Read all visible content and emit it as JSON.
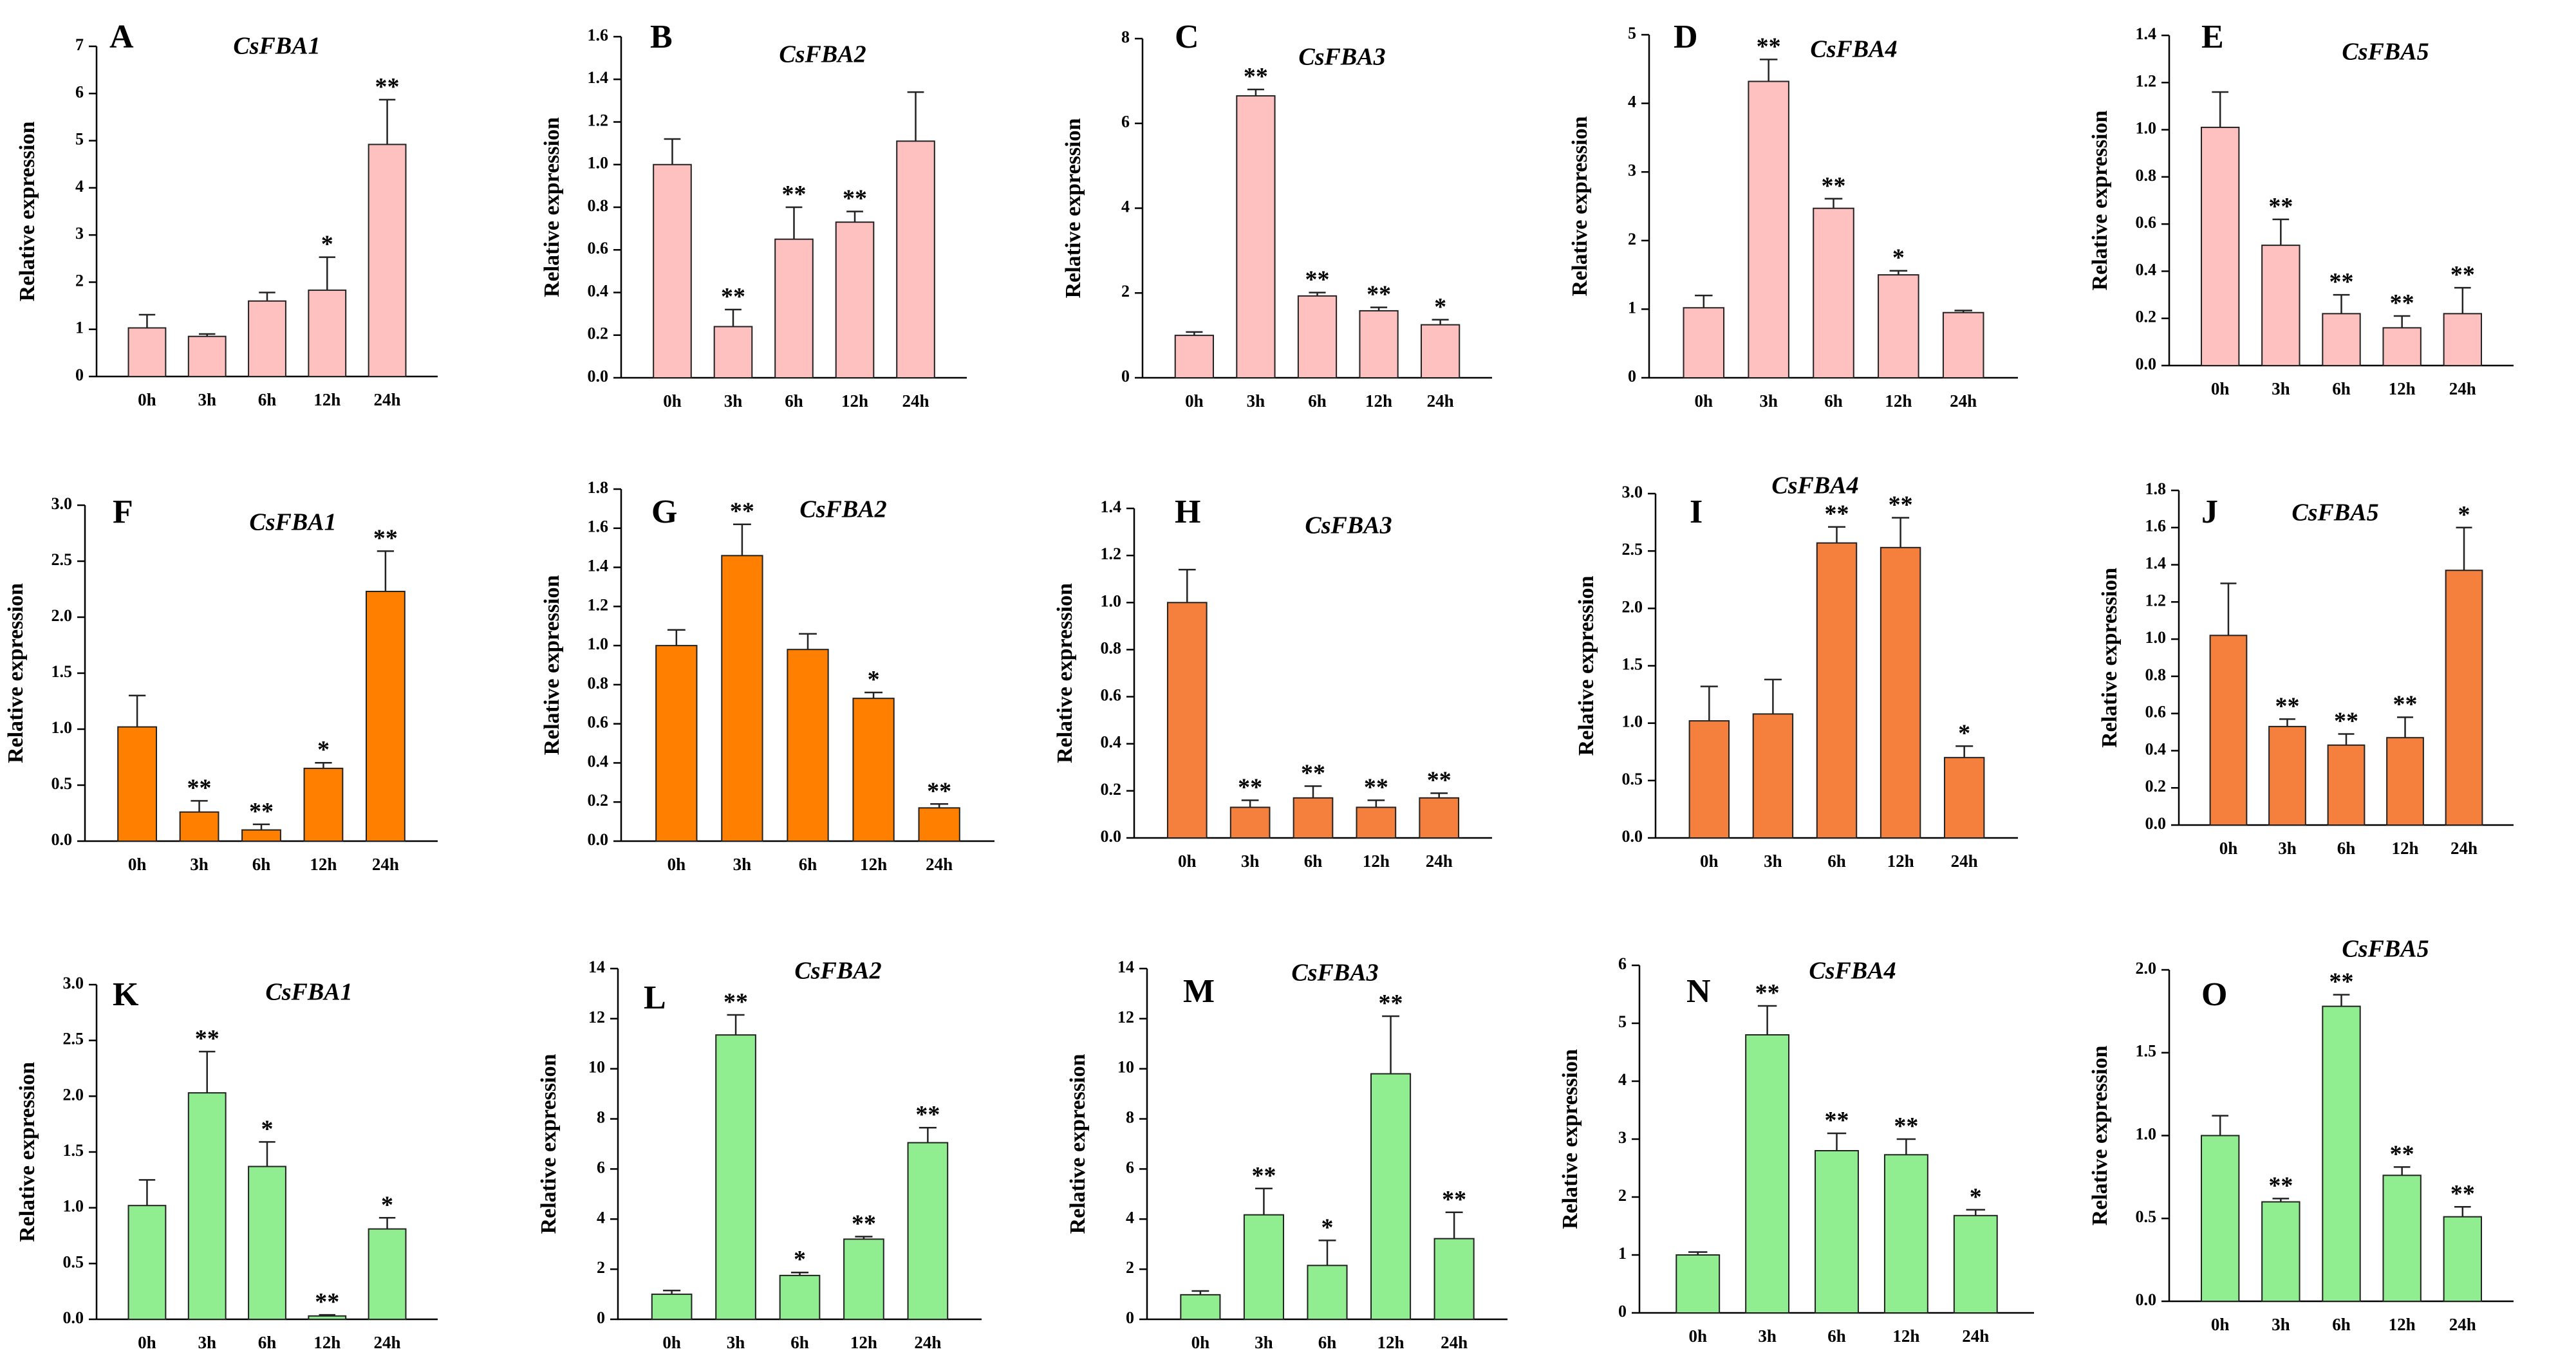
{
  "figure": {
    "ylabel": "Relative expression"
  },
  "chart_data": [
    {
      "panel": "A",
      "title": "CsFBA1",
      "type": "bar",
      "color": "#FFC0C0",
      "categories": [
        "0h",
        "3h",
        "6h",
        "12h",
        "24h"
      ],
      "values": [
        1.03,
        0.85,
        1.6,
        1.83,
        4.92
      ],
      "errors": [
        0.28,
        0.05,
        0.18,
        0.7,
        0.95
      ],
      "significance": [
        "",
        "",
        "",
        "*",
        "**"
      ],
      "ylim": [
        0,
        7
      ],
      "yticks": [
        "0",
        "1",
        "2",
        "3",
        "4",
        "5",
        "6",
        "7"
      ],
      "ylabel": "Relative expression"
    },
    {
      "panel": "B",
      "title": "CsFBA2",
      "type": "bar",
      "color": "#FFC0C0",
      "categories": [
        "0h",
        "3h",
        "6h",
        "12h",
        "24h"
      ],
      "values": [
        1.0,
        0.24,
        0.65,
        0.73,
        1.11
      ],
      "errors": [
        0.12,
        0.08,
        0.15,
        0.05,
        0.23
      ],
      "significance": [
        "",
        "**",
        "**",
        "**",
        ""
      ],
      "ylim": [
        0,
        1.6
      ],
      "yticks": [
        "0.0",
        "0.2",
        "0.4",
        "0.6",
        "0.8",
        "1.0",
        "1.2",
        "1.4",
        "1.6"
      ],
      "ylabel": "Relative expression"
    },
    {
      "panel": "C",
      "title": "CsFBA3",
      "type": "bar",
      "color": "#FFC0C0",
      "categories": [
        "0h",
        "3h",
        "6h",
        "12h",
        "24h"
      ],
      "values": [
        1.0,
        6.65,
        1.93,
        1.58,
        1.25
      ],
      "errors": [
        0.08,
        0.15,
        0.08,
        0.08,
        0.12
      ],
      "significance": [
        "",
        "**",
        "**",
        "**",
        "*"
      ],
      "ylim": [
        0,
        8
      ],
      "yticks": [
        "0",
        "2",
        "4",
        "6",
        "8"
      ],
      "ylabel": "Relative expression"
    },
    {
      "panel": "D",
      "title": "CsFBA4",
      "type": "bar",
      "color": "#FFC0C0",
      "categories": [
        "0h",
        "3h",
        "6h",
        "12h",
        "24h"
      ],
      "values": [
        1.02,
        4.32,
        2.47,
        1.5,
        0.95
      ],
      "errors": [
        0.18,
        0.32,
        0.14,
        0.06,
        0.03
      ],
      "significance": [
        "",
        "**",
        "**",
        "*",
        ""
      ],
      "ylim": [
        0,
        5
      ],
      "yticks": [
        "0",
        "1",
        "2",
        "3",
        "4",
        "5"
      ],
      "ylabel": "Relative expression"
    },
    {
      "panel": "E",
      "title": "CsFBA5",
      "type": "bar",
      "color": "#FFC0C0",
      "categories": [
        "0h",
        "3h",
        "6h",
        "12h",
        "24h"
      ],
      "values": [
        1.01,
        0.51,
        0.22,
        0.16,
        0.22
      ],
      "errors": [
        0.15,
        0.11,
        0.08,
        0.05,
        0.11
      ],
      "significance": [
        "",
        "**",
        "**",
        "**",
        "**"
      ],
      "ylim": [
        0,
        1.4
      ],
      "yticks": [
        "0.0",
        "0.2",
        "0.4",
        "0.6",
        "0.8",
        "1.0",
        "1.2",
        "1.4"
      ],
      "ylabel": "Relative expression"
    },
    {
      "panel": "F",
      "title": "CsFBA1",
      "type": "bar",
      "color": "#FF8000",
      "categories": [
        "0h",
        "3h",
        "6h",
        "12h",
        "24h"
      ],
      "values": [
        1.02,
        0.26,
        0.1,
        0.65,
        2.23
      ],
      "errors": [
        0.28,
        0.1,
        0.05,
        0.05,
        0.36
      ],
      "significance": [
        "",
        "**",
        "**",
        "*",
        "**"
      ],
      "ylim": [
        0,
        3.0
      ],
      "yticks": [
        "0.0",
        "0.5",
        "1.0",
        "1.5",
        "2.0",
        "2.5",
        "3.0"
      ],
      "ylabel": "Relative expression"
    },
    {
      "panel": "G",
      "title": "CsFBA2",
      "type": "bar",
      "color": "#FF8000",
      "categories": [
        "0h",
        "3h",
        "6h",
        "12h",
        "24h"
      ],
      "values": [
        1.0,
        1.46,
        0.98,
        0.73,
        0.17
      ],
      "errors": [
        0.08,
        0.16,
        0.08,
        0.03,
        0.02
      ],
      "significance": [
        "",
        "**",
        "",
        "*",
        "**"
      ],
      "ylim": [
        0,
        1.8
      ],
      "yticks": [
        "0.0",
        "0.2",
        "0.4",
        "0.6",
        "0.8",
        "1.0",
        "1.2",
        "1.4",
        "1.6",
        "1.8"
      ],
      "ylabel": "Relative expression"
    },
    {
      "panel": "H",
      "title": "CsFBA3",
      "type": "bar",
      "color": "#F5803E",
      "categories": [
        "0h",
        "3h",
        "6h",
        "12h",
        "24h"
      ],
      "values": [
        1.0,
        0.13,
        0.17,
        0.13,
        0.17
      ],
      "errors": [
        0.14,
        0.03,
        0.05,
        0.03,
        0.02
      ],
      "significance": [
        "",
        "**",
        "**",
        "**",
        "**"
      ],
      "ylim": [
        0,
        1.4
      ],
      "yticks": [
        "0.0",
        "0.2",
        "0.4",
        "0.6",
        "0.8",
        "1.0",
        "1.2",
        "1.4"
      ],
      "ylabel": "Relative expression"
    },
    {
      "panel": "I",
      "title": "CsFBA4",
      "type": "bar",
      "color": "#F5803E",
      "categories": [
        "0h",
        "3h",
        "6h",
        "12h",
        "24h"
      ],
      "values": [
        1.02,
        1.08,
        2.57,
        2.53,
        0.7
      ],
      "errors": [
        0.3,
        0.3,
        0.14,
        0.26,
        0.1
      ],
      "significance": [
        "",
        "",
        "**",
        "**",
        "*"
      ],
      "ylim": [
        0,
        3.0
      ],
      "yticks": [
        "0.0",
        "0.5",
        "1.0",
        "1.5",
        "2.0",
        "2.5",
        "3.0"
      ],
      "ylabel": "Relative expression"
    },
    {
      "panel": "J",
      "title": "CsFBA5",
      "type": "bar",
      "color": "#F5803E",
      "categories": [
        "0h",
        "3h",
        "6h",
        "12h",
        "24h"
      ],
      "values": [
        1.02,
        0.53,
        0.43,
        0.47,
        1.37
      ],
      "errors": [
        0.28,
        0.04,
        0.06,
        0.11,
        0.23
      ],
      "significance": [
        "",
        "**",
        "**",
        "**",
        "*"
      ],
      "ylim": [
        0,
        1.8
      ],
      "yticks": [
        "0.0",
        "0.2",
        "0.4",
        "0.6",
        "0.8",
        "1.0",
        "1.2",
        "1.4",
        "1.6",
        "1.8"
      ],
      "ylabel": "Relative expression"
    },
    {
      "panel": "K",
      "title": "CsFBA1",
      "type": "bar",
      "color": "#90EE90",
      "categories": [
        "0h",
        "3h",
        "6h",
        "12h",
        "24h"
      ],
      "values": [
        1.02,
        2.03,
        1.37,
        0.03,
        0.81
      ],
      "errors": [
        0.23,
        0.37,
        0.22,
        0.01,
        0.1
      ],
      "significance": [
        "",
        "**",
        "*",
        "**",
        "*"
      ],
      "ylim": [
        0,
        3.0
      ],
      "yticks": [
        "0.0",
        "0.5",
        "1.0",
        "1.5",
        "2.0",
        "2.5",
        "3.0"
      ],
      "ylabel": "Relative expression"
    },
    {
      "panel": "L",
      "title": "CsFBA2",
      "type": "bar",
      "color": "#90EE90",
      "categories": [
        "0h",
        "3h",
        "6h",
        "12h",
        "24h"
      ],
      "values": [
        1.0,
        11.35,
        1.75,
        3.2,
        7.05
      ],
      "errors": [
        0.15,
        0.8,
        0.12,
        0.1,
        0.6
      ],
      "significance": [
        "",
        "**",
        "*",
        "**",
        "**"
      ],
      "ylim": [
        0,
        14
      ],
      "yticks": [
        "0",
        "2",
        "4",
        "6",
        "8",
        "10",
        "12",
        "14"
      ],
      "ylabel": "Relative expression"
    },
    {
      "panel": "M",
      "title": "CsFBA3",
      "type": "bar",
      "color": "#90EE90",
      "categories": [
        "0h",
        "3h",
        "6h",
        "12h",
        "24h"
      ],
      "values": [
        0.98,
        4.17,
        2.15,
        9.8,
        3.22
      ],
      "errors": [
        0.15,
        1.05,
        1.0,
        2.3,
        1.05
      ],
      "significance": [
        "",
        "**",
        "*",
        "**",
        "**"
      ],
      "ylim": [
        0,
        14
      ],
      "yticks": [
        "0",
        "2",
        "4",
        "6",
        "8",
        "10",
        "12",
        "14"
      ],
      "ylabel": "Relative expression"
    },
    {
      "panel": "N",
      "title": "CsFBA4",
      "type": "bar",
      "color": "#90EE90",
      "categories": [
        "0h",
        "3h",
        "6h",
        "12h",
        "24h"
      ],
      "values": [
        1.0,
        4.8,
        2.8,
        2.73,
        1.68
      ],
      "errors": [
        0.05,
        0.5,
        0.3,
        0.27,
        0.1
      ],
      "significance": [
        "",
        "**",
        "**",
        "**",
        "*"
      ],
      "ylim": [
        0,
        6
      ],
      "yticks": [
        "0",
        "1",
        "2",
        "3",
        "4",
        "5",
        "6"
      ],
      "ylabel": "Relative expression"
    },
    {
      "panel": "O",
      "title": "CsFBA5",
      "type": "bar",
      "color": "#90EE90",
      "categories": [
        "0h",
        "3h",
        "6h",
        "12h",
        "24h"
      ],
      "values": [
        1.0,
        0.6,
        1.78,
        0.76,
        0.51
      ],
      "errors": [
        0.12,
        0.02,
        0.07,
        0.05,
        0.06
      ],
      "significance": [
        "",
        "**",
        "**",
        "**",
        "**"
      ],
      "ylim": [
        0,
        2.0
      ],
      "yticks": [
        "0.0",
        "0.5",
        "1.0",
        "1.5",
        "2.0"
      ],
      "ylabel": "Relative expression"
    }
  ]
}
